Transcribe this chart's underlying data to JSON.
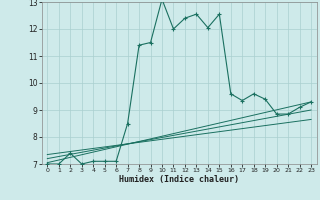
{
  "xlabel": "Humidex (Indice chaleur)",
  "bg_color": "#ceeaea",
  "grid_color": "#aacfcf",
  "line_color": "#1a7060",
  "xlim": [
    -0.5,
    23.5
  ],
  "ylim": [
    7,
    13
  ],
  "yticks": [
    7,
    8,
    9,
    10,
    11,
    12,
    13
  ],
  "xticks": [
    0,
    1,
    2,
    3,
    4,
    5,
    6,
    7,
    8,
    9,
    10,
    11,
    12,
    13,
    14,
    15,
    16,
    17,
    18,
    19,
    20,
    21,
    22,
    23
  ],
  "main_x": [
    0,
    1,
    2,
    3,
    4,
    5,
    6,
    7,
    8,
    9,
    10,
    11,
    12,
    13,
    14,
    15,
    16,
    17,
    18,
    19,
    20,
    21,
    22,
    23
  ],
  "main_y": [
    7.0,
    7.0,
    7.4,
    7.0,
    7.1,
    7.1,
    7.1,
    8.5,
    11.4,
    11.5,
    13.1,
    12.0,
    12.4,
    12.55,
    12.05,
    12.55,
    9.6,
    9.35,
    9.6,
    9.4,
    8.85,
    8.85,
    9.1,
    9.3
  ],
  "line1_x": [
    0,
    23
  ],
  "line1_y": [
    7.05,
    9.3
  ],
  "line2_x": [
    0,
    23
  ],
  "line2_y": [
    7.2,
    9.0
  ],
  "line3_x": [
    0,
    23
  ],
  "line3_y": [
    7.35,
    8.65
  ]
}
